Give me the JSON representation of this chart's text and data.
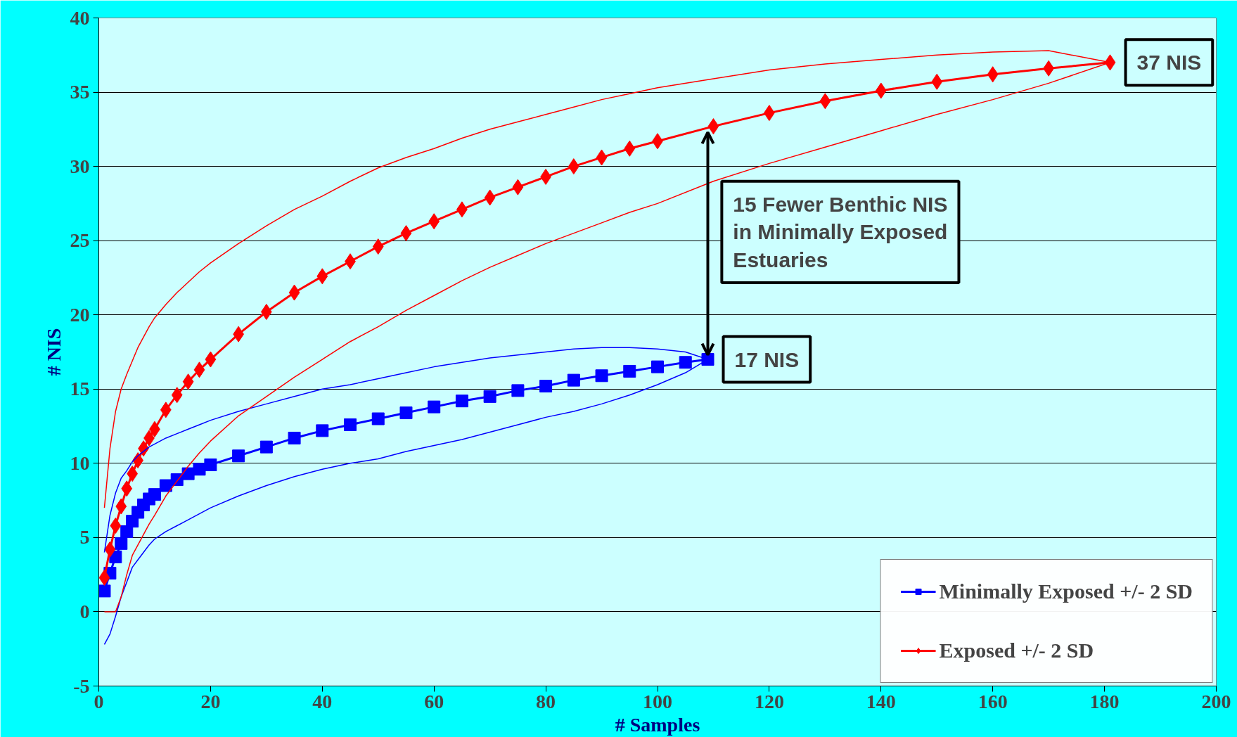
{
  "chart_data": {
    "type": "line",
    "xlabel": "# Samples",
    "ylabel": "# NIS",
    "xlim": [
      0,
      200
    ],
    "ylim": [
      -5,
      40
    ],
    "xticks": [
      0,
      20,
      40,
      60,
      80,
      100,
      120,
      140,
      160,
      180,
      200
    ],
    "yticks": [
      -5,
      0,
      5,
      10,
      15,
      20,
      25,
      30,
      35,
      40
    ],
    "grid": "y",
    "legend": "bottom right",
    "series": [
      {
        "name": "Minimally Exposed +/- 2 SD",
        "color": "#0000ff",
        "marker": "square",
        "x": [
          1,
          2,
          3,
          4,
          5,
          6,
          7,
          8,
          9,
          10,
          12,
          14,
          16,
          18,
          20,
          25,
          30,
          35,
          40,
          45,
          50,
          55,
          60,
          65,
          70,
          75,
          80,
          85,
          90,
          95,
          100,
          105,
          109
        ],
        "values": [
          1.4,
          2.6,
          3.7,
          4.6,
          5.4,
          6.1,
          6.7,
          7.2,
          7.6,
          7.9,
          8.5,
          8.9,
          9.3,
          9.6,
          9.9,
          10.5,
          11.1,
          11.7,
          12.2,
          12.6,
          13.0,
          13.4,
          13.8,
          14.2,
          14.5,
          14.9,
          15.2,
          15.6,
          15.9,
          16.2,
          16.5,
          16.8,
          17
        ]
      },
      {
        "color": "#0000ff",
        "marker": "none",
        "x": [
          1,
          2,
          3,
          4,
          5,
          6,
          7,
          8,
          9,
          10,
          12,
          14,
          16,
          18,
          20,
          25,
          30,
          35,
          40,
          45,
          50,
          55,
          60,
          65,
          70,
          75,
          80,
          85,
          90,
          95,
          100,
          105,
          109
        ],
        "values": [
          -2.2,
          -1.5,
          -0.3,
          1,
          2,
          3,
          3.5,
          4,
          4.5,
          4.9,
          5.4,
          5.8,
          6.2,
          6.6,
          7,
          7.8,
          8.5,
          9.1,
          9.6,
          10,
          10.3,
          10.8,
          11.2,
          11.6,
          12.1,
          12.6,
          13.1,
          13.5,
          14,
          14.6,
          15.3,
          16.1,
          17
        ]
      },
      {
        "color": "#0000ff",
        "marker": "none",
        "x": [
          1,
          2,
          3,
          4,
          5,
          6,
          7,
          8,
          9,
          10,
          12,
          14,
          16,
          18,
          20,
          25,
          30,
          35,
          40,
          45,
          50,
          55,
          60,
          65,
          70,
          75,
          80,
          85,
          90,
          95,
          100,
          105,
          109
        ],
        "values": [
          4,
          6.5,
          8,
          9,
          9.5,
          10.1,
          10.5,
          10.8,
          11.1,
          11.3,
          11.7,
          12,
          12.3,
          12.6,
          12.9,
          13.5,
          14,
          14.5,
          15,
          15.3,
          15.7,
          16.1,
          16.5,
          16.8,
          17.1,
          17.3,
          17.5,
          17.7,
          17.8,
          17.8,
          17.7,
          17.5,
          17
        ]
      },
      {
        "name": "Exposed +/- 2 SD",
        "color": "#ff0000",
        "marker": "diamond",
        "x": [
          1,
          2,
          3,
          4,
          5,
          6,
          7,
          8,
          9,
          10,
          12,
          14,
          16,
          18,
          20,
          25,
          30,
          35,
          40,
          45,
          50,
          55,
          60,
          65,
          70,
          75,
          80,
          85,
          90,
          95,
          100,
          110,
          120,
          130,
          140,
          150,
          160,
          170,
          181
        ],
        "values": [
          2.3,
          4.2,
          5.8,
          7.1,
          8.3,
          9.3,
          10.2,
          11,
          11.7,
          12.3,
          13.6,
          14.6,
          15.5,
          16.3,
          17,
          18.7,
          20.2,
          21.5,
          22.6,
          23.6,
          24.6,
          25.5,
          26.3,
          27.1,
          27.9,
          28.6,
          29.3,
          30,
          30.6,
          31.2,
          31.7,
          32.7,
          33.6,
          34.4,
          35.1,
          35.7,
          36.2,
          36.6,
          37
        ]
      },
      {
        "color": "#ff0000",
        "marker": "none",
        "x": [
          1,
          2,
          3,
          4,
          5,
          6,
          7,
          8,
          9,
          10,
          12,
          14,
          16,
          18,
          20,
          25,
          30,
          35,
          40,
          45,
          50,
          55,
          60,
          65,
          70,
          75,
          80,
          85,
          90,
          95,
          100,
          110,
          120,
          130,
          140,
          150,
          160,
          170,
          181
        ],
        "values": [
          0,
          0,
          0,
          1,
          2.5,
          3.8,
          4.5,
          5.2,
          5.9,
          6.5,
          7.8,
          8.8,
          9.8,
          10.7,
          11.5,
          13.2,
          14.5,
          15.8,
          17,
          18.2,
          19.2,
          20.3,
          21.3,
          22.3,
          23.2,
          24,
          24.8,
          25.5,
          26.2,
          26.9,
          27.5,
          29,
          30.2,
          31.3,
          32.4,
          33.5,
          34.5,
          35.6,
          37
        ]
      },
      {
        "color": "#ff0000",
        "marker": "none",
        "x": [
          1,
          2,
          3,
          4,
          5,
          6,
          7,
          8,
          9,
          10,
          12,
          14,
          16,
          18,
          20,
          25,
          30,
          35,
          40,
          45,
          50,
          55,
          60,
          65,
          70,
          75,
          80,
          85,
          90,
          95,
          100,
          110,
          120,
          130,
          140,
          150,
          160,
          170,
          181
        ],
        "values": [
          7,
          11,
          13.5,
          15,
          16,
          16.9,
          17.8,
          18.5,
          19.2,
          19.8,
          20.7,
          21.5,
          22.2,
          22.9,
          23.5,
          24.8,
          26,
          27.1,
          28,
          29,
          29.9,
          30.6,
          31.2,
          31.9,
          32.5,
          33,
          33.5,
          34,
          34.5,
          34.9,
          35.3,
          35.9,
          36.5,
          36.9,
          37.2,
          37.5,
          37.7,
          37.8,
          37
        ]
      }
    ],
    "annotations": [
      {
        "text": "37 NIS",
        "x": 181,
        "y": 37
      },
      {
        "text": "17 NIS",
        "x": 109,
        "y": 17
      },
      "15 Fewer Benthic NIS in Minimally Exposed Estuaries"
    ]
  }
}
